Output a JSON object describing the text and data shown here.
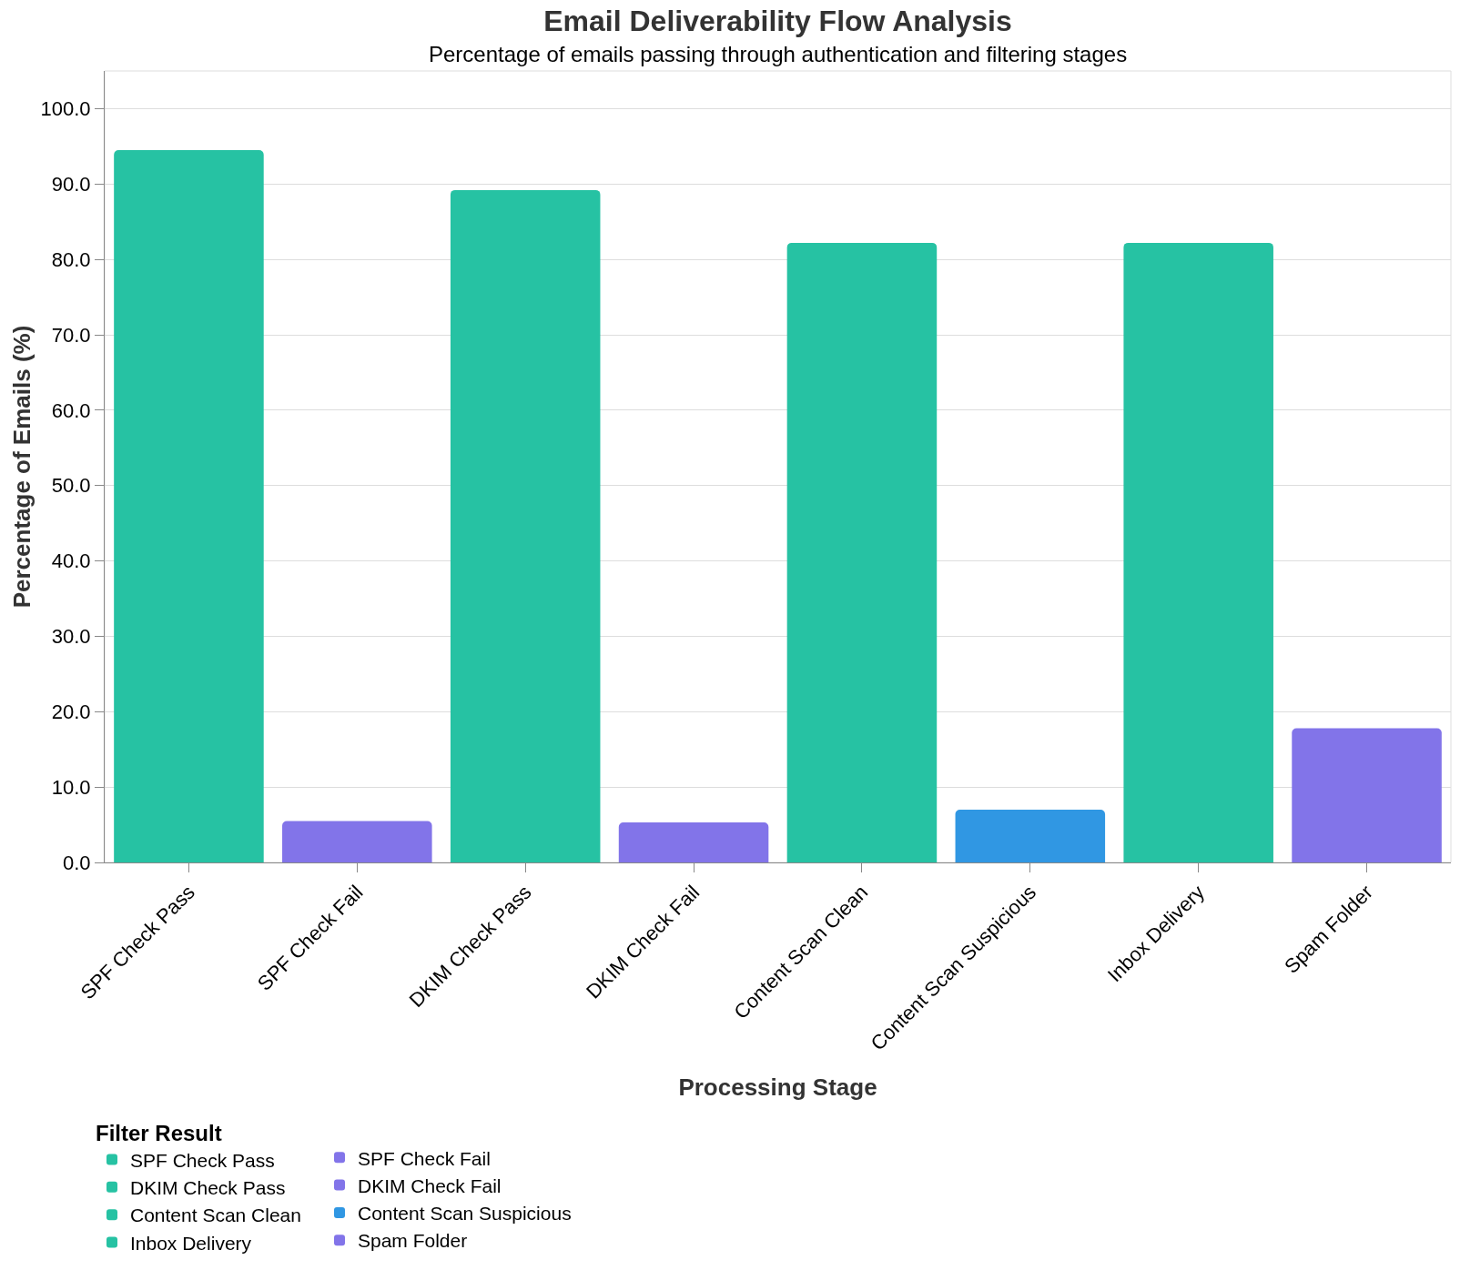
{
  "chart_data": {
    "type": "bar",
    "title": "Email Deliverability Flow Analysis",
    "subtitle": "Percentage of emails passing through authentication and filtering stages",
    "xlabel": "Processing Stage",
    "ylabel": "Percentage of Emails (%)",
    "legend_title": "Filter Result",
    "categories": [
      "SPF Check Pass",
      "SPF Check Fail",
      "DKIM Check Pass",
      "DKIM Check Fail",
      "Content Scan Clean",
      "Content Scan Suspicious",
      "Inbox Delivery",
      "Spam Folder"
    ],
    "series": [
      {
        "name": "SPF Check Pass",
        "color": "#26c2a3",
        "values": [
          94.5,
          null,
          null,
          null,
          null,
          null,
          null,
          null
        ]
      },
      {
        "name": "SPF Check Fail",
        "color": "#8274e9",
        "values": [
          null,
          5.5,
          null,
          null,
          null,
          null,
          null,
          null
        ]
      },
      {
        "name": "DKIM Check Pass",
        "color": "#26c2a3",
        "values": [
          null,
          null,
          89.2,
          null,
          null,
          null,
          null,
          null
        ]
      },
      {
        "name": "DKIM Check Fail",
        "color": "#8274e9",
        "values": [
          null,
          null,
          null,
          5.3,
          null,
          null,
          null,
          null
        ]
      },
      {
        "name": "Content Scan Clean",
        "color": "#26c2a3",
        "values": [
          null,
          null,
          null,
          null,
          82.2,
          null,
          null,
          null
        ]
      },
      {
        "name": "Content Scan Suspicious",
        "color": "#3097e3",
        "values": [
          null,
          null,
          null,
          null,
          null,
          7.0,
          null,
          null
        ]
      },
      {
        "name": "Inbox Delivery",
        "color": "#26c2a3",
        "values": [
          null,
          null,
          null,
          null,
          null,
          null,
          82.2,
          null
        ]
      },
      {
        "name": "Spam Folder",
        "color": "#8274e9",
        "values": [
          null,
          null,
          null,
          null,
          null,
          null,
          null,
          17.8
        ]
      }
    ],
    "ylim": [
      0,
      105
    ],
    "yticks": [
      {
        "value": 0,
        "label": "0.0"
      },
      {
        "value": 10,
        "label": "10.0"
      },
      {
        "value": 20,
        "label": "20.0"
      },
      {
        "value": 30,
        "label": "30.0"
      },
      {
        "value": 40,
        "label": "40.0"
      },
      {
        "value": 50,
        "label": "50.0"
      },
      {
        "value": 60,
        "label": "60.0"
      },
      {
        "value": 70,
        "label": "70.0"
      },
      {
        "value": 80,
        "label": "80.0"
      },
      {
        "value": 90,
        "label": "90.0"
      },
      {
        "value": 100,
        "label": "100.0"
      }
    ],
    "grid": "y",
    "legend": "bottom left"
  }
}
